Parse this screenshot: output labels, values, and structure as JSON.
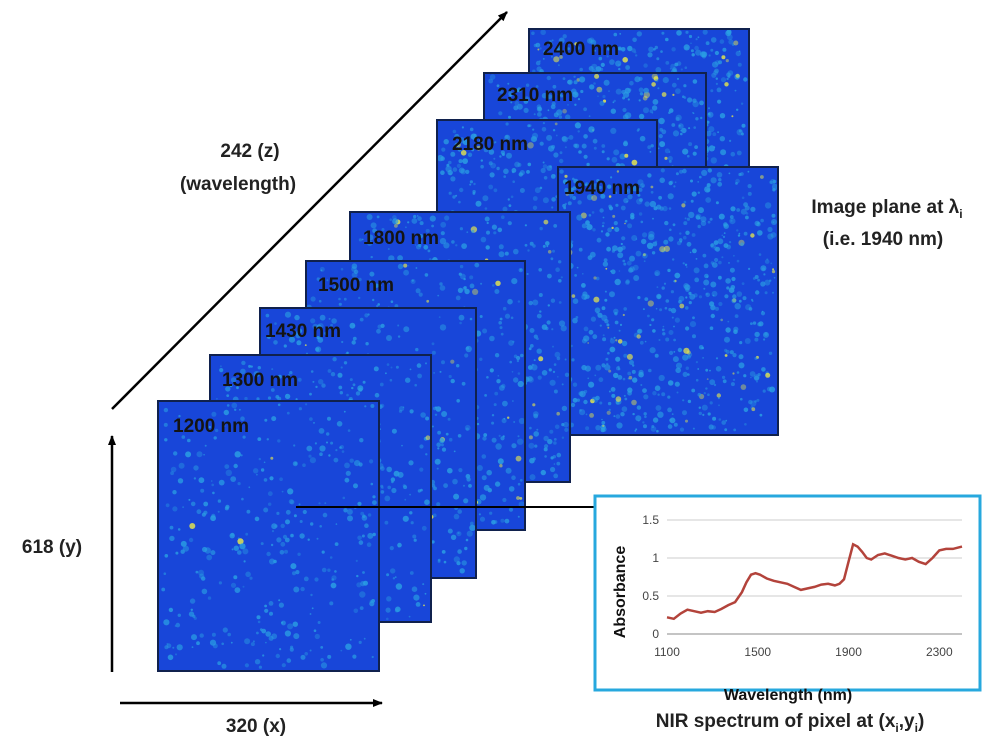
{
  "colors": {
    "frame_border": "#10214d",
    "image_low": "#1846d9",
    "image_mid": "#2a9fe3",
    "image_high": "#e9e94a",
    "inset_border": "#27a8de",
    "spectrum_line": "#b3433b",
    "arrow": "#000000"
  },
  "frames": [
    {
      "label": "2400 nm",
      "intensity": 0.55
    },
    {
      "label": "2310 nm",
      "intensity": 0.52
    },
    {
      "label": "2180 nm",
      "intensity": 0.45
    },
    {
      "label": "1940 nm",
      "intensity": 0.62
    },
    {
      "label": "1800 nm",
      "intensity": 0.33
    },
    {
      "label": "1500 nm",
      "intensity": 0.3
    },
    {
      "label": "1430 nm",
      "intensity": 0.24
    },
    {
      "label": "1300 nm",
      "intensity": 0.15
    },
    {
      "label": "1200 nm",
      "intensity": 0.1
    }
  ],
  "axes": {
    "z_value": "242 (z)",
    "z_name": "(wavelength)",
    "y_label": "618 (y)",
    "x_label": "320 (x)"
  },
  "annotation": {
    "line1": "Image plane at λ",
    "line1_sub": "i",
    "line2": "(i.e. 1940 nm)"
  },
  "inset_title": {
    "text": "NIR spectrum of pixel at (x",
    "sub1": "i",
    "sep": ",y",
    "sub2": "i",
    "end": ")"
  },
  "chart_data": {
    "type": "line",
    "xlabel": "Wavelength  (nm)",
    "ylabel": "Absorbance",
    "xlim": [
      1100,
      2400
    ],
    "ylim": [
      0,
      1.5
    ],
    "x_ticks": [
      "1100",
      "1500",
      "1900",
      "2300"
    ],
    "y_ticks": [
      "0",
      "0.5",
      "1",
      "1.5"
    ],
    "grid": true,
    "series": [
      {
        "x": [
          1100,
          1130,
          1160,
          1190,
          1220,
          1250,
          1280,
          1310,
          1340,
          1370,
          1400,
          1430,
          1450,
          1470,
          1490,
          1510,
          1540,
          1570,
          1600,
          1630,
          1660,
          1690,
          1720,
          1750,
          1780,
          1810,
          1840,
          1860,
          1880,
          1900,
          1920,
          1940,
          1960,
          1980,
          2000,
          2030,
          2060,
          2090,
          2120,
          2150,
          2180,
          2210,
          2240,
          2270,
          2300,
          2330,
          2360,
          2400
        ],
        "y": [
          0.22,
          0.2,
          0.27,
          0.32,
          0.3,
          0.28,
          0.3,
          0.29,
          0.33,
          0.38,
          0.42,
          0.55,
          0.68,
          0.78,
          0.8,
          0.78,
          0.73,
          0.7,
          0.68,
          0.66,
          0.62,
          0.58,
          0.6,
          0.62,
          0.65,
          0.66,
          0.64,
          0.66,
          0.72,
          0.95,
          1.18,
          1.15,
          1.08,
          1.0,
          0.98,
          1.04,
          1.06,
          1.03,
          1.0,
          0.98,
          1.0,
          0.95,
          0.92,
          1.0,
          1.1,
          1.12,
          1.12,
          1.15
        ]
      }
    ]
  }
}
